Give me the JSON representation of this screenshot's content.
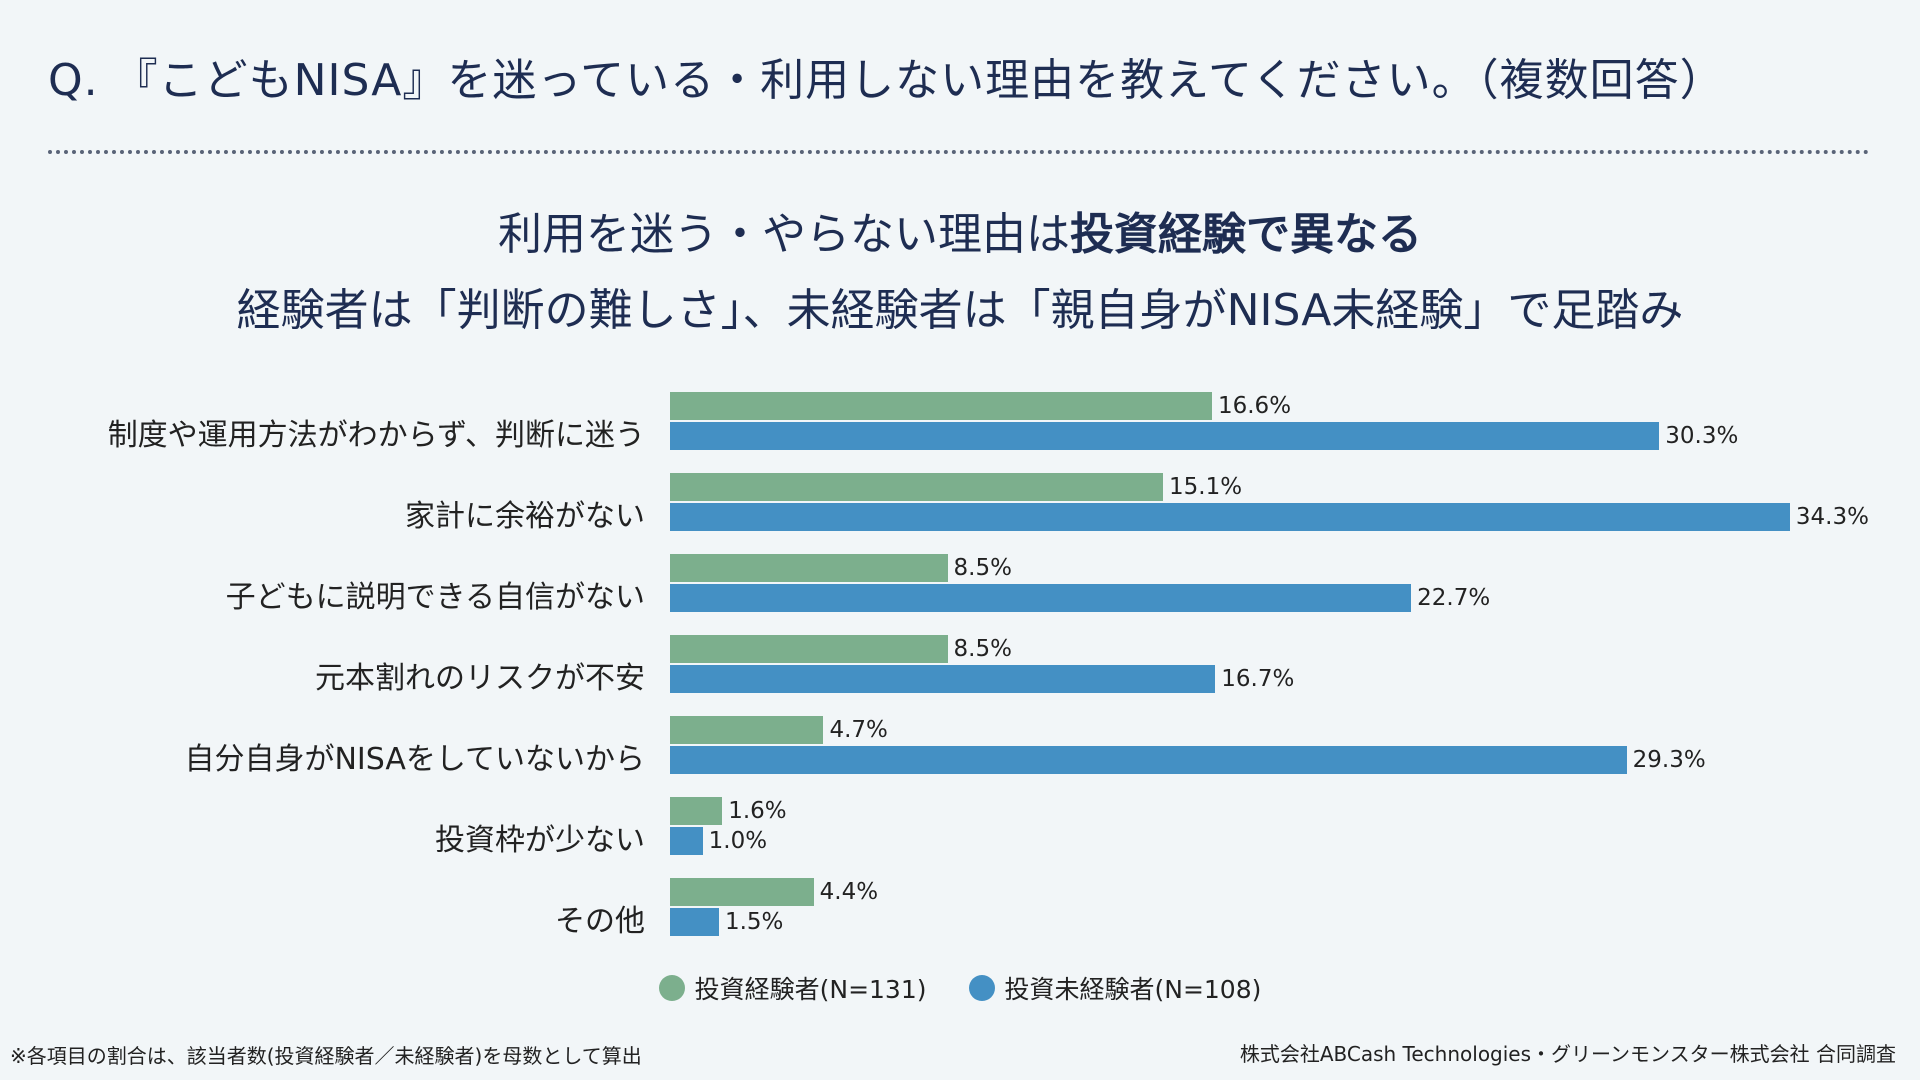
{
  "question": "Q. 『こどもNISA』を迷っている・利用しない理由を教えてください。（複数回答）",
  "headline": {
    "line1_prefix": "利用を迷う・やらない理由は",
    "line1_bold": "投資経験で異なる",
    "line2": "経験者は「判断の難しさ」、未経験者は「親自身がNISA未経験」で足踏み"
  },
  "chart_data": {
    "type": "bar",
    "orientation": "horizontal",
    "categories": [
      "制度や運用方法がわからず、判断に迷う",
      "家計に余裕がない",
      "子どもに説明できる自信がない",
      "元本割れのリスクが不安",
      "自分自身がNISAをしていないから",
      "投資枠が少ない",
      "その他"
    ],
    "series": [
      {
        "name": "投資経験者(N=131)",
        "color": "#7caf8d",
        "values": [
          16.6,
          15.1,
          8.5,
          8.5,
          4.7,
          1.6,
          4.4
        ]
      },
      {
        "name": "投資未経験者(N=108)",
        "color": "#4490c4",
        "values": [
          30.3,
          34.3,
          22.7,
          16.7,
          29.3,
          1.0,
          1.5
        ]
      }
    ],
    "value_suffix": "%",
    "legend_position": "bottom"
  },
  "footnote": "※各項目の割合は、該当者数(投資経験者／未経験者)を母数として算出",
  "credit": "株式会社ABCash Technologies・グリーンモンスター株式会社 合同調査"
}
